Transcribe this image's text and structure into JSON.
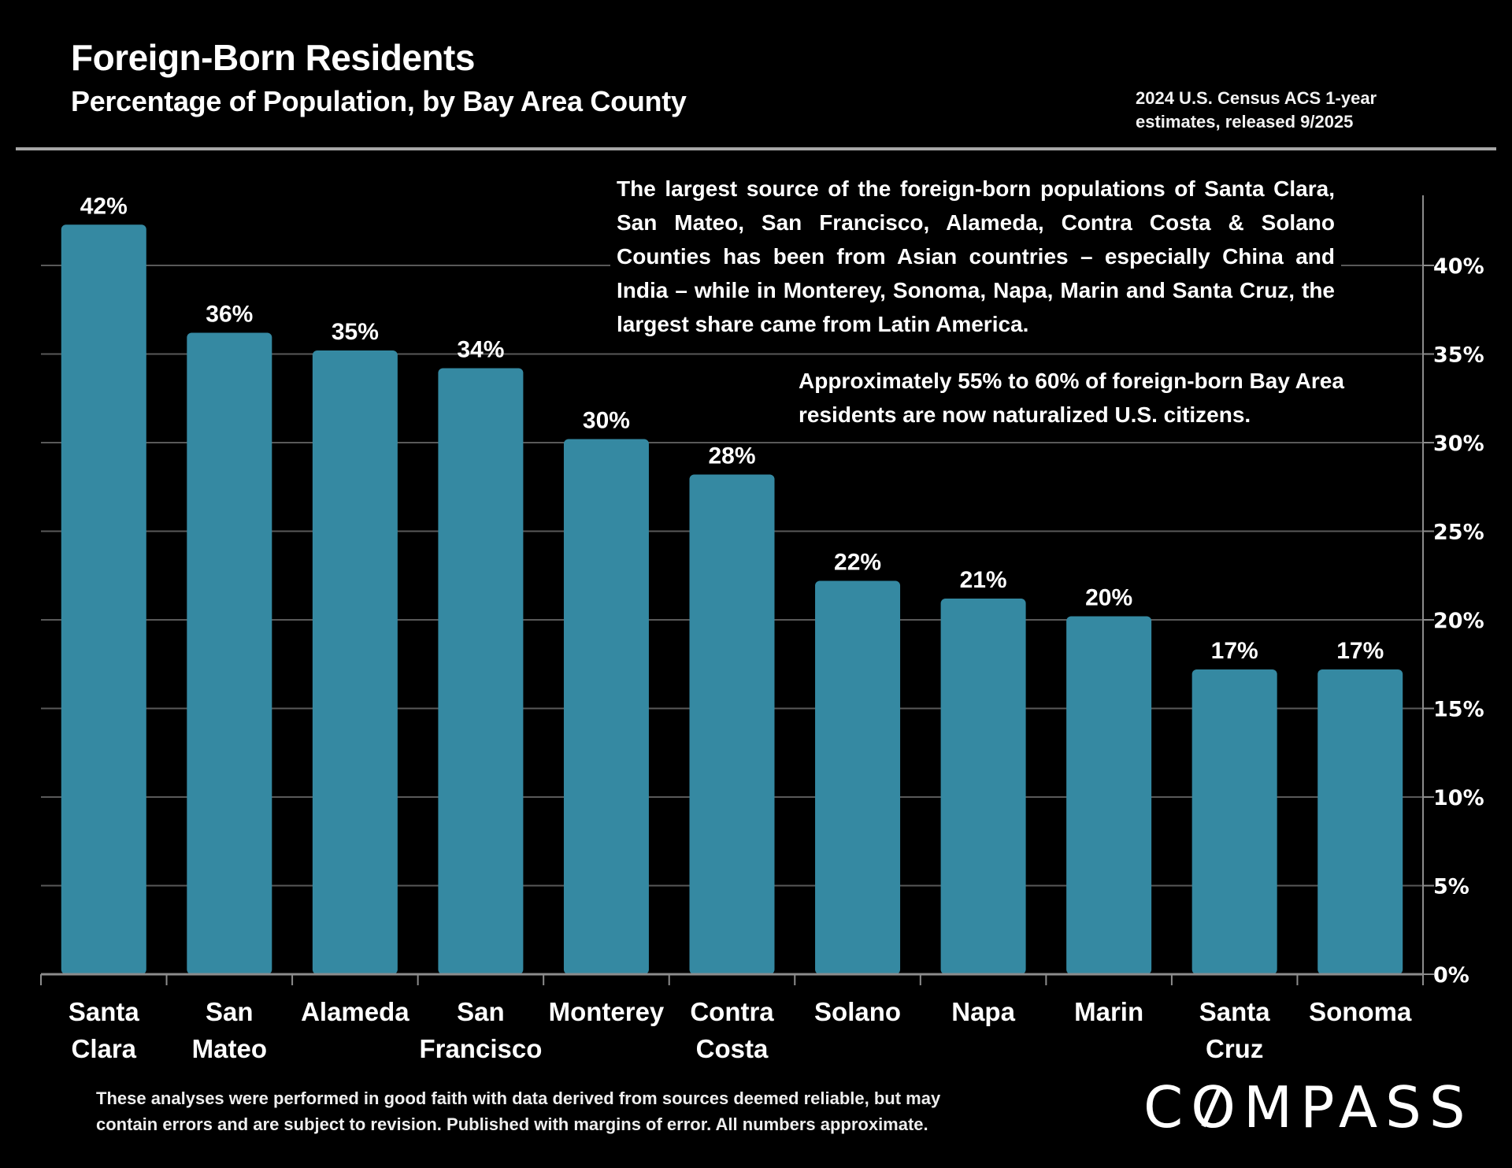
{
  "header": {
    "title": "Foreign-Born Residents",
    "subtitle": "Percentage of Population, by Bay Area County",
    "source_line1": "2024 U.S. Census ACS 1-year",
    "source_line2": "estimates, released 9/2025"
  },
  "annotations": {
    "asian_latin_note": "The largest source of the foreign-born populations of Santa Clara, San Mateo, San Francisco, Alameda, Contra Costa & Solano Counties has been from Asian countries – especially China and India – while in Monterey, Sonoma, Napa, Marin and Santa Cruz, the largest share came from Latin America.",
    "citizenship_note": "Approximately 55% to 60% of foreign-born Bay Area residents are now naturalized U.S. citizens."
  },
  "footer": {
    "disclaimer_line1": "These analyses were performed in good faith with data derived from sources deemed reliable, but may",
    "disclaimer_line2": "contain errors and are subject to revision.  Published with margins of error. All numbers approximate.",
    "logo_text_pre": "C",
    "logo_text_o": "O",
    "logo_text_post": "MPASS"
  },
  "colors": {
    "bar": "#3589a2",
    "background": "#000000",
    "gridline": "#595959",
    "axis": "#8c8c8c",
    "text": "#ffffff"
  },
  "chart_data": {
    "type": "bar",
    "title": "Foreign-Born Residents",
    "subtitle": "Percentage of Population, by Bay Area County",
    "xlabel": "",
    "ylabel": "",
    "categories": [
      [
        "Santa",
        "Clara"
      ],
      [
        "San",
        "Mateo"
      ],
      [
        "Alameda"
      ],
      [
        "San",
        "Francisco"
      ],
      [
        "Monterey"
      ],
      [
        "Contra",
        "Costa"
      ],
      [
        "Solano"
      ],
      [
        "Napa"
      ],
      [
        "Marin"
      ],
      [
        "Santa",
        "Cruz"
      ],
      [
        "Sonoma"
      ]
    ],
    "values": [
      42.3,
      36.2,
      35.2,
      34.2,
      30.2,
      28.2,
      22.2,
      21.2,
      20.2,
      17.2,
      17.2
    ],
    "data_labels": [
      "42%",
      "36%",
      "35%",
      "34%",
      "30%",
      "28%",
      "22%",
      "21%",
      "20%",
      "17%",
      "17%"
    ],
    "ylim": [
      0,
      44
    ],
    "yticks": [
      0,
      5,
      10,
      15,
      20,
      25,
      30,
      35,
      40
    ],
    "ytick_labels": [
      "0%",
      "5%",
      "10%",
      "15%",
      "20%",
      "25%",
      "30%",
      "35%",
      "40%"
    ],
    "y_axis_side": "right",
    "grid": true,
    "legend": "none"
  }
}
